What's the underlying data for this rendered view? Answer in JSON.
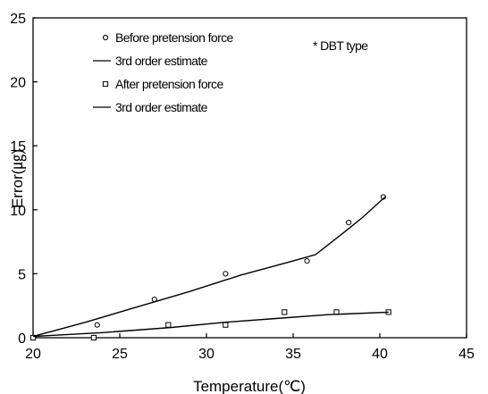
{
  "chart_data": {
    "type": "scatter",
    "xlabel": "Temperature(℃)",
    "ylabel": "Error(㎍)",
    "xlim": [
      20,
      45
    ],
    "ylim": [
      0,
      25
    ],
    "xticks": [
      "20",
      "25",
      "30",
      "35",
      "40",
      "45"
    ],
    "yticks": [
      "0",
      "5",
      "10",
      "15",
      "20",
      "25"
    ],
    "grid": false,
    "legend_position": "top-left",
    "annotation": "* DBT type",
    "series": [
      {
        "name": "Before pretension force",
        "marker": "circle",
        "points": [
          [
            20.0,
            0
          ],
          [
            23.7,
            1.0
          ],
          [
            27.0,
            3.0
          ],
          [
            31.1,
            5.0
          ],
          [
            35.8,
            6.0
          ],
          [
            38.2,
            9.0
          ],
          [
            40.2,
            11.0
          ]
        ]
      },
      {
        "name": "3rd order estimate",
        "marker": "line",
        "points": [
          [
            20.0,
            0.1
          ],
          [
            23.0,
            1.2
          ],
          [
            26.0,
            2.4
          ],
          [
            29.0,
            3.6
          ],
          [
            32.0,
            4.9
          ],
          [
            35.0,
            6.0
          ],
          [
            36.3,
            6.5
          ],
          [
            38.0,
            8.3
          ],
          [
            39.0,
            9.4
          ],
          [
            40.3,
            11.0
          ]
        ]
      },
      {
        "name": "After pretension force",
        "marker": "square",
        "points": [
          [
            20.0,
            0
          ],
          [
            23.5,
            0
          ],
          [
            27.8,
            1.0
          ],
          [
            31.1,
            1.0
          ],
          [
            34.5,
            2.0
          ],
          [
            37.5,
            2.0
          ],
          [
            40.5,
            2.0
          ]
        ]
      },
      {
        "name": "3rd order estimate",
        "marker": "line",
        "points": [
          [
            20.0,
            0.1
          ],
          [
            24.0,
            0.4
          ],
          [
            28.0,
            0.8
          ],
          [
            31.0,
            1.2
          ],
          [
            34.0,
            1.5
          ],
          [
            37.0,
            1.8
          ],
          [
            40.5,
            2.0
          ]
        ]
      }
    ],
    "colors": {
      "ink": "#000000",
      "background": "#ffffff"
    }
  }
}
